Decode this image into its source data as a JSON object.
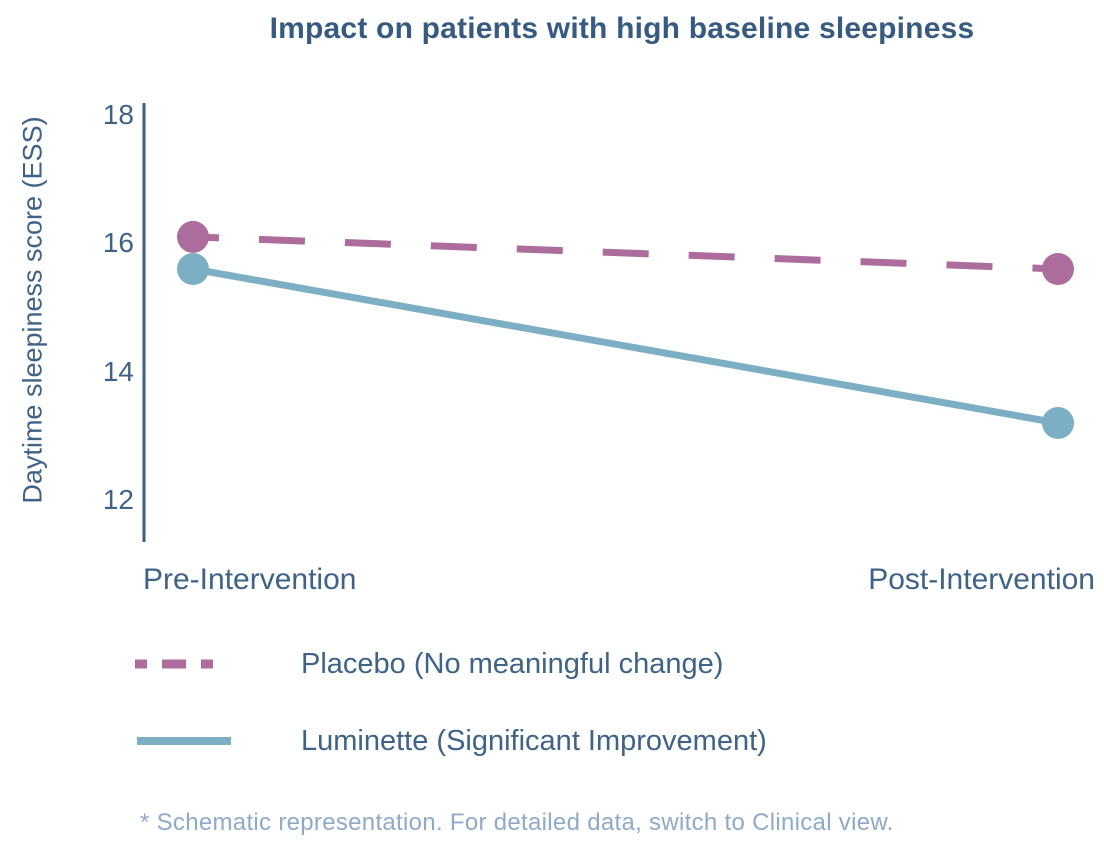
{
  "title": "Impact on patients with high baseline sleepiness",
  "footnote": "* Schematic representation. For detailed data, switch to Clinical view.",
  "colors": {
    "title_text": "#375b80",
    "axis_line": "#3c5f82",
    "tick_text": "#3f6287",
    "footnote_text": "#8fa9c9",
    "placebo": "#ac6d9d",
    "luminette": "#7dafc4",
    "background": "#ffffff"
  },
  "chart_data": {
    "type": "line",
    "categories": [
      "Pre-Intervention",
      "Post-Intervention"
    ],
    "series": [
      {
        "name": "Placebo (No meaningful change)",
        "values": [
          16.1,
          15.6
        ],
        "color": "#ac6d9d",
        "line_style": "dashed",
        "marker": "circle"
      },
      {
        "name": "Luminette (Significant Improvement)",
        "values": [
          15.6,
          13.2
        ],
        "color": "#7dafc4",
        "line_style": "solid",
        "marker": "circle"
      }
    ],
    "ylabel": "Daytime sleepiness score (ESS)",
    "xlabel": "",
    "yticks": [
      12,
      14,
      16,
      18
    ],
    "ylim": [
      11.4,
      18.4
    ],
    "grid": false,
    "legend_position": "bottom"
  }
}
